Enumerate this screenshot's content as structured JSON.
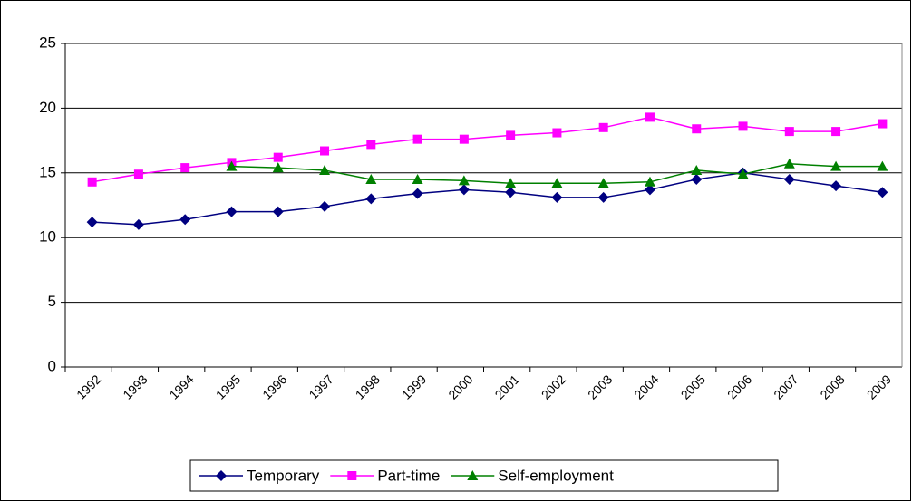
{
  "chart_data": {
    "type": "line",
    "categories": [
      "1992",
      "1993",
      "1994",
      "1995",
      "1996",
      "1997",
      "1998",
      "1999",
      "2000",
      "2001",
      "2002",
      "2003",
      "2004",
      "2005",
      "2006",
      "2007",
      "2008",
      "2009"
    ],
    "series": [
      {
        "name": "Temporary",
        "color": "#000080",
        "marker": "diamond",
        "values": [
          11.2,
          11.0,
          11.4,
          12.0,
          12.0,
          12.4,
          13.0,
          13.4,
          13.7,
          13.5,
          13.1,
          13.1,
          13.7,
          14.5,
          15.0,
          14.5,
          14.0,
          13.5
        ]
      },
      {
        "name": "Part-time",
        "color": "#ff00ff",
        "marker": "square",
        "values": [
          14.3,
          14.9,
          15.4,
          15.8,
          16.2,
          16.7,
          17.2,
          17.6,
          17.6,
          17.9,
          18.1,
          18.5,
          19.3,
          18.4,
          18.6,
          18.2,
          18.2,
          18.8
        ]
      },
      {
        "name": "Self-employment",
        "color": "#008000",
        "marker": "triangle",
        "values": [
          null,
          null,
          null,
          15.5,
          15.4,
          15.2,
          14.5,
          14.5,
          14.4,
          14.2,
          14.2,
          14.2,
          14.3,
          15.2,
          14.9,
          15.7,
          15.5,
          15.5
        ]
      }
    ],
    "ylim": [
      0,
      25
    ],
    "yticks": [
      0,
      5,
      10,
      15,
      20,
      25
    ],
    "grid": true,
    "legend": "bottom"
  }
}
